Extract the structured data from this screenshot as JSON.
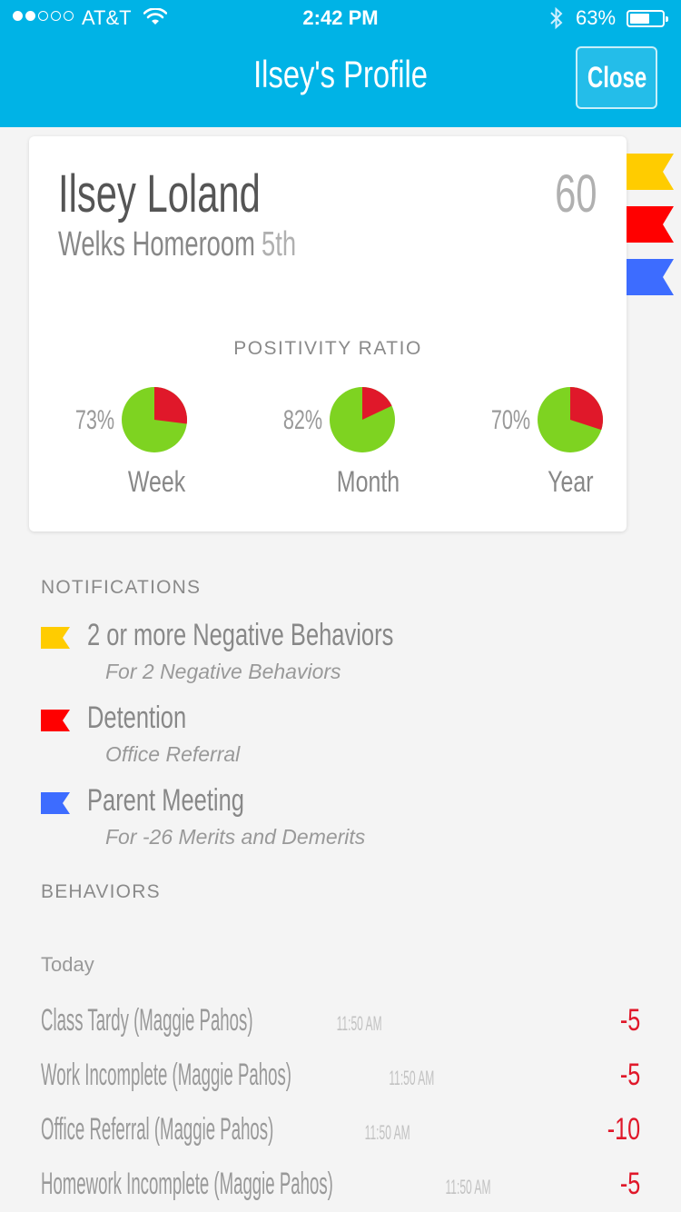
{
  "status_bar": {
    "signal_bars_filled": 2,
    "signal_bars_total": 5,
    "carrier": "AT&T",
    "time": "2:42 PM",
    "battery_percent": "63%",
    "battery_level": 0.63
  },
  "nav": {
    "title": "Ilsey's Profile",
    "close_label": "Close",
    "bar_color": "#00b3e6"
  },
  "profile": {
    "name": "Ilsey Loland",
    "score": "60",
    "homeroom": "Welks Homeroom",
    "grade": "5th"
  },
  "positivity": {
    "title": "POSITIVITY RATIO",
    "items": [
      {
        "label": "Week",
        "percent_text": "73%",
        "positive": 0.73
      },
      {
        "label": "Month",
        "percent_text": "82%",
        "positive": 0.82
      },
      {
        "label": "Year",
        "percent_text": "70%",
        "positive": 0.7
      }
    ],
    "positive_color": "#7ed321",
    "negative_color": "#e0182a"
  },
  "side_flags": [
    {
      "color": "#ffcc00",
      "icon": "yellow-flag-icon"
    },
    {
      "color": "#ff0000",
      "icon": "red-flag-icon"
    },
    {
      "color": "#3d6cff",
      "icon": "blue-flag-icon"
    }
  ],
  "notifications": {
    "heading": "NOTIFICATIONS",
    "items": [
      {
        "title": "2 or more Negative Behaviors",
        "subtitle": "For 2 Negative Behaviors",
        "flag_color": "#ffcc00",
        "icon": "yellow-flag-icon"
      },
      {
        "title": "Detention",
        "subtitle": "Office Referral",
        "flag_color": "#ff0000",
        "icon": "red-flag-icon"
      },
      {
        "title": "Parent Meeting",
        "subtitle": "For -26 Merits and Demerits",
        "flag_color": "#3d6cff",
        "icon": "blue-flag-icon"
      }
    ]
  },
  "behaviors": {
    "heading": "BEHAVIORS",
    "day_label": "Today",
    "items": [
      {
        "desc": "Class Tardy  (Maggie Pahos)",
        "time": "11:50 AM",
        "value": "-5"
      },
      {
        "desc": "Work Incomplete  (Maggie Pahos)",
        "time": "11:50 AM",
        "value": "-5"
      },
      {
        "desc": "Office Referral  (Maggie Pahos)",
        "time": "11:50 AM",
        "value": "-10"
      },
      {
        "desc": "Homework Incomplete  (Maggie Pahos)",
        "time": "11:50 AM",
        "value": "-5"
      }
    ]
  }
}
